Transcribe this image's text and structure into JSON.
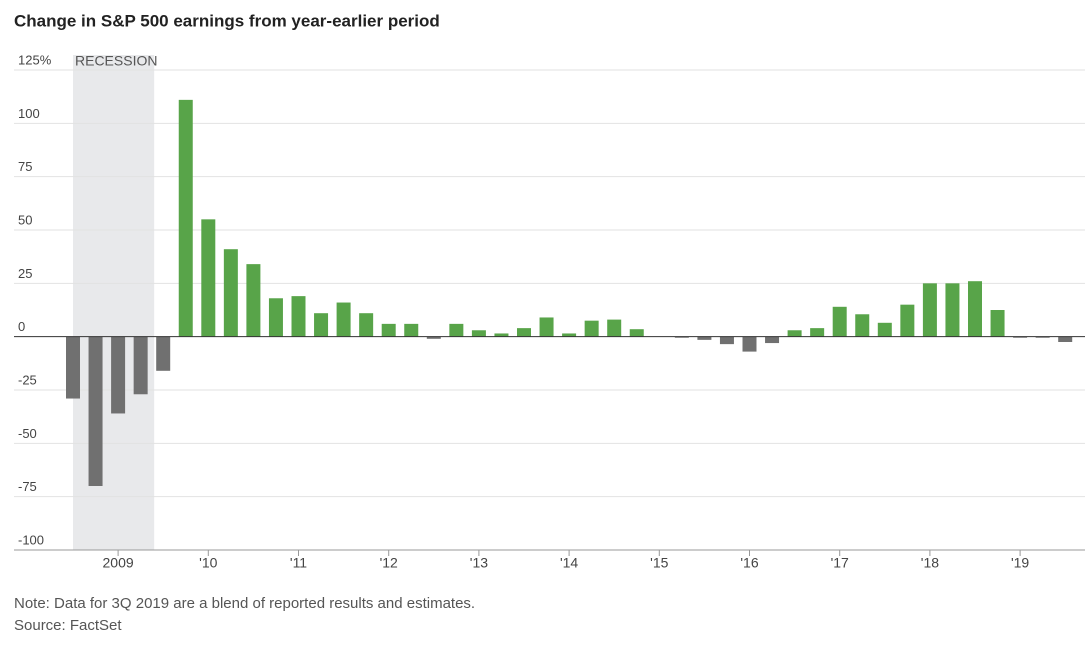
{
  "chart_data": {
    "type": "bar",
    "title": "Change in S&P 500 earnings from year-earlier period",
    "annotations": [
      "RECESSION"
    ],
    "notes": [
      "Note: Data for 3Q 2019 are a blend of reported results and estimates.",
      "Source: FactSet"
    ],
    "categories": [
      null,
      null,
      "2009",
      null,
      null,
      null,
      "'10",
      null,
      null,
      null,
      "'11",
      null,
      null,
      null,
      "'12",
      null,
      null,
      null,
      "'13",
      null,
      null,
      null,
      "'14",
      null,
      null,
      null,
      "'15",
      null,
      null,
      null,
      "'16",
      null,
      null,
      null,
      "'17",
      null,
      null,
      null,
      "'18",
      null,
      null,
      null,
      "'19",
      null,
      null
    ],
    "values": [
      -29,
      -70,
      -36,
      -27,
      -16,
      111,
      55,
      41,
      34,
      18,
      19,
      11,
      16,
      11,
      6,
      6,
      -1,
      6,
      3,
      1.5,
      4,
      9,
      1.5,
      7.5,
      8,
      3.5,
      0,
      -0.5,
      -1.5,
      -3.5,
      -7,
      -3,
      3,
      4,
      14,
      10.5,
      6.5,
      15,
      25,
      25,
      26,
      12.5,
      -0.5,
      -0.5,
      -2.5
    ],
    "positive_color": "#58a449",
    "negative_color": "#707070",
    "ylim": [
      -100,
      125
    ],
    "yticks": [
      {
        "value": 125,
        "label": "125%"
      },
      100,
      75,
      50,
      25,
      0,
      -25,
      -50,
      -75,
      -100
    ],
    "grid": true
  }
}
